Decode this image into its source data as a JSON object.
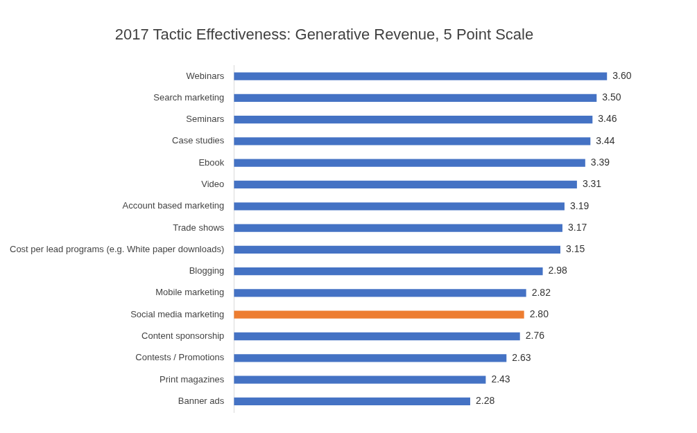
{
  "chart_data": {
    "type": "bar",
    "orientation": "horizontal",
    "title": "2017 Tactic Effectiveness: Generative Revenue, 5 Point Scale",
    "categories": [
      "Webinars",
      "Search marketing",
      "Seminars",
      "Case studies",
      "Ebook",
      "Video",
      "Account based marketing",
      "Trade shows",
      "Cost per lead programs (e.g. White paper downloads)",
      "Blogging",
      "Mobile marketing",
      "Social media marketing",
      "Content sponsorship",
      "Contests / Promotions",
      "Print magazines",
      "Banner ads"
    ],
    "values": [
      3.6,
      3.5,
      3.46,
      3.44,
      3.39,
      3.31,
      3.19,
      3.17,
      3.15,
      2.98,
      2.82,
      2.8,
      2.76,
      2.63,
      2.43,
      2.28
    ],
    "colors": [
      "#4472c4",
      "#4472c4",
      "#4472c4",
      "#4472c4",
      "#4472c4",
      "#4472c4",
      "#4472c4",
      "#4472c4",
      "#4472c4",
      "#4472c4",
      "#4472c4",
      "#ed7d31",
      "#4472c4",
      "#4472c4",
      "#4472c4",
      "#4472c4"
    ],
    "value_labels": [
      "3.60",
      "3.50",
      "3.46",
      "3.44",
      "3.39",
      "3.31",
      "3.19",
      "3.17",
      "3.15",
      "2.98",
      "2.82",
      "2.80",
      "2.76",
      "2.63",
      "2.43",
      "2.28"
    ],
    "tick_labels": "y",
    "grid": false,
    "legend": false
  }
}
